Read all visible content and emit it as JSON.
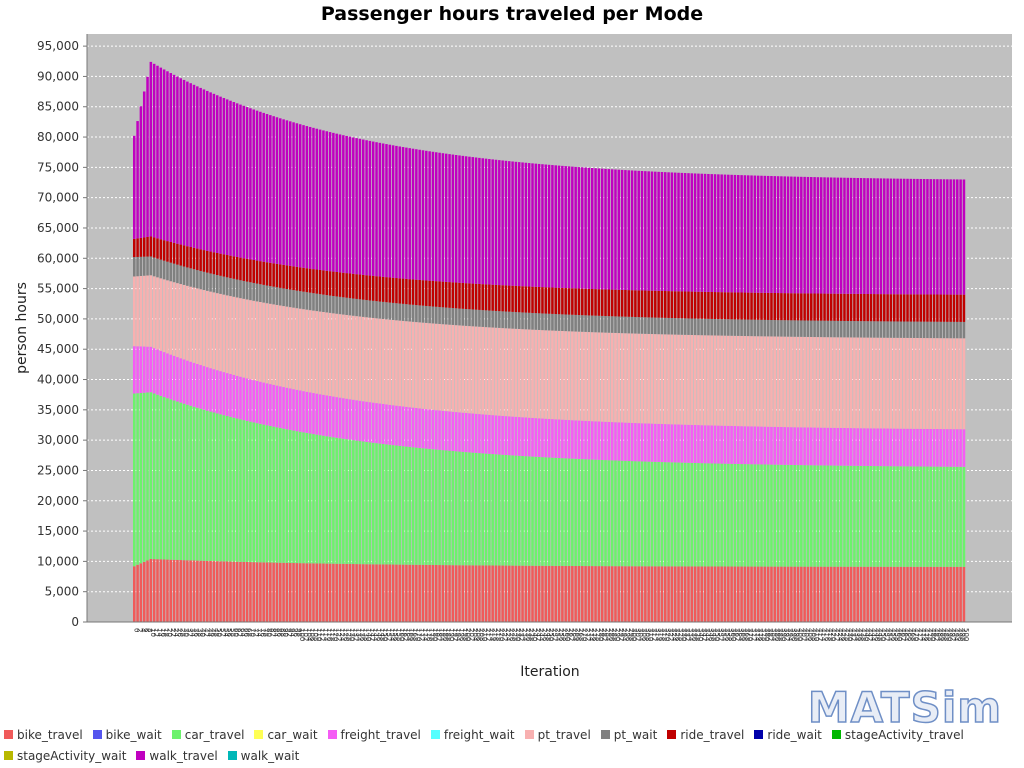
{
  "chart_data": {
    "type": "bar",
    "stacked": true,
    "title": "Passenger hours traveled per Mode",
    "xlabel": "Iteration",
    "ylabel": "person hours",
    "ylim": [
      0,
      97000
    ],
    "y_ticks": [
      0,
      5000,
      10000,
      15000,
      20000,
      25000,
      30000,
      35000,
      40000,
      45000,
      50000,
      55000,
      60000,
      65000,
      70000,
      75000,
      80000,
      85000,
      90000,
      95000
    ],
    "y_tick_labels": [
      "0",
      "5,000",
      "10,000",
      "15,000",
      "20,000",
      "25,000",
      "30,000",
      "35,000",
      "40,000",
      "45,000",
      "50,000",
      "55,000",
      "60,000",
      "65,000",
      "70,000",
      "75,000",
      "80,000",
      "85,000",
      "90,000",
      "95,000"
    ],
    "grid": true,
    "background": "#c0c0c0",
    "legend_position": "bottom",
    "iterations": {
      "first": 0,
      "last": 500,
      "step": 2
    },
    "series": [
      {
        "name": "bike_travel",
        "color": "#f05a5a",
        "start": 9200,
        "peak": 10400,
        "end": 9100
      },
      {
        "name": "bike_wait",
        "color": "#5555ee",
        "start": 0,
        "peak": 0,
        "end": 0
      },
      {
        "name": "car_travel",
        "color": "#6cf26c",
        "start": 28500,
        "peak": 27500,
        "end": 16500
      },
      {
        "name": "car_wait",
        "color": "#ffff55",
        "start": 0,
        "peak": 0,
        "end": 0
      },
      {
        "name": "freight_travel",
        "color": "#f55cf5",
        "start": 7800,
        "peak": 7500,
        "end": 6200
      },
      {
        "name": "freight_wait",
        "color": "#55ffff",
        "start": 0,
        "peak": 0,
        "end": 0
      },
      {
        "name": "pt_travel",
        "color": "#f8b0b0",
        "start": 11500,
        "peak": 11800,
        "end": 15000
      },
      {
        "name": "pt_wait",
        "color": "#808080",
        "start": 3200,
        "peak": 3100,
        "end": 2700
      },
      {
        "name": "ride_travel",
        "color": "#c00000",
        "start": 3000,
        "peak": 3300,
        "end": 4500
      },
      {
        "name": "ride_wait",
        "color": "#0000aa",
        "start": 0,
        "peak": 0,
        "end": 0
      },
      {
        "name": "stageActivity_travel",
        "color": "#00b800",
        "start": 0,
        "peak": 0,
        "end": 0
      },
      {
        "name": "stageActivity_wait",
        "color": "#b8b800",
        "start": 0,
        "peak": 0,
        "end": 0
      },
      {
        "name": "walk_travel",
        "color": "#c000c0",
        "start": 17000,
        "peak": 28800,
        "end": 19000
      },
      {
        "name": "walk_wait",
        "color": "#00b8b8",
        "start": 0,
        "peak": 0,
        "end": 0
      }
    ]
  },
  "logo": {
    "text": "MATSim"
  }
}
